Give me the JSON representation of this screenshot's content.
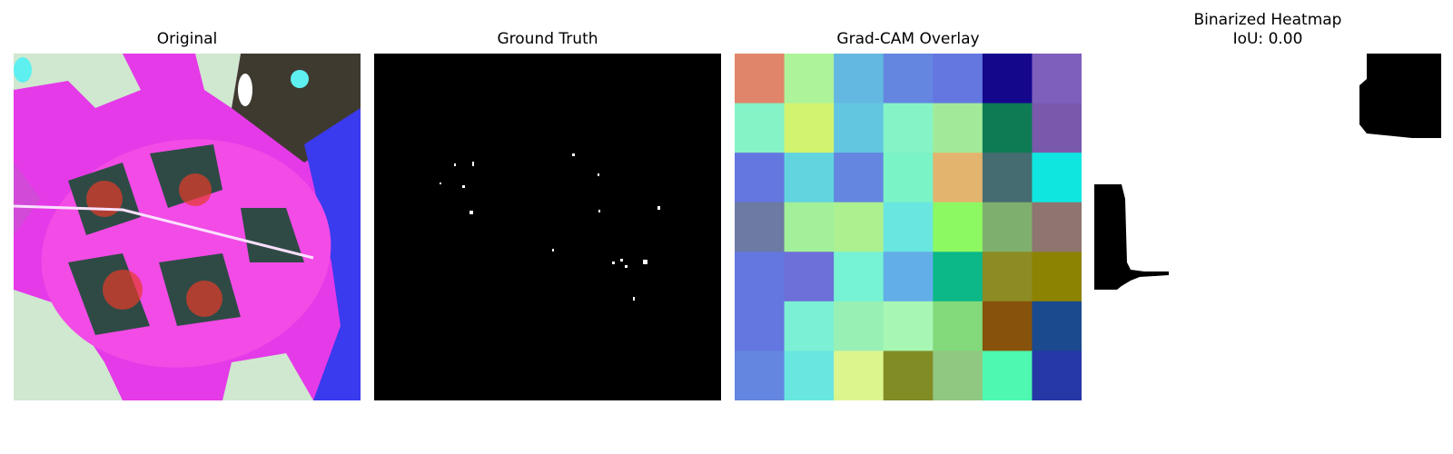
{
  "panels": [
    {
      "title": "Original",
      "content": "leaf photograph (false-color)"
    },
    {
      "title": "Ground Truth",
      "content": "black mask with sparse white speckles"
    },
    {
      "title": "Grad-CAM Overlay",
      "content": "7x7 colored heatmap grid"
    },
    {
      "title": "Binarized Heatmap",
      "subtitle": "IoU: 0.00",
      "content": "white background with two black regions"
    }
  ],
  "gradcam_grid_colors": [
    [
      "#e0856a",
      "#acf39a",
      "#62b8e0",
      "#6486e0",
      "#6477e0",
      "#14078c",
      "#7f5fbc"
    ],
    [
      "#86f3c6",
      "#d2f370",
      "#62c6e0",
      "#86f3c6",
      "#a2ea9a",
      "#0e7b55",
      "#7a59ad"
    ],
    [
      "#6477e0",
      "#62d4e0",
      "#6486e0",
      "#7af3c6",
      "#e3b46e",
      "#456c71",
      "#10e6e0"
    ],
    [
      "#6d7aa3",
      "#a2f09a",
      "#acf090",
      "#6ae6e0",
      "#8cf962",
      "#7faf6e",
      "#8f7570"
    ],
    [
      "#6477e0",
      "#6d70d8",
      "#76f3d4",
      "#62aee8",
      "#0cb888",
      "#8d8b24",
      "#8d8303"
    ],
    [
      "#6477e0",
      "#7cf0d4",
      "#98f0b4",
      "#a8f6b4",
      "#82da7a",
      "#87530c",
      "#1b4a8f"
    ],
    [
      "#6486e0",
      "#6ae6e0",
      "#dcf68e",
      "#828c24",
      "#90c882",
      "#4ef8b0",
      "#2637a6"
    ]
  ]
}
